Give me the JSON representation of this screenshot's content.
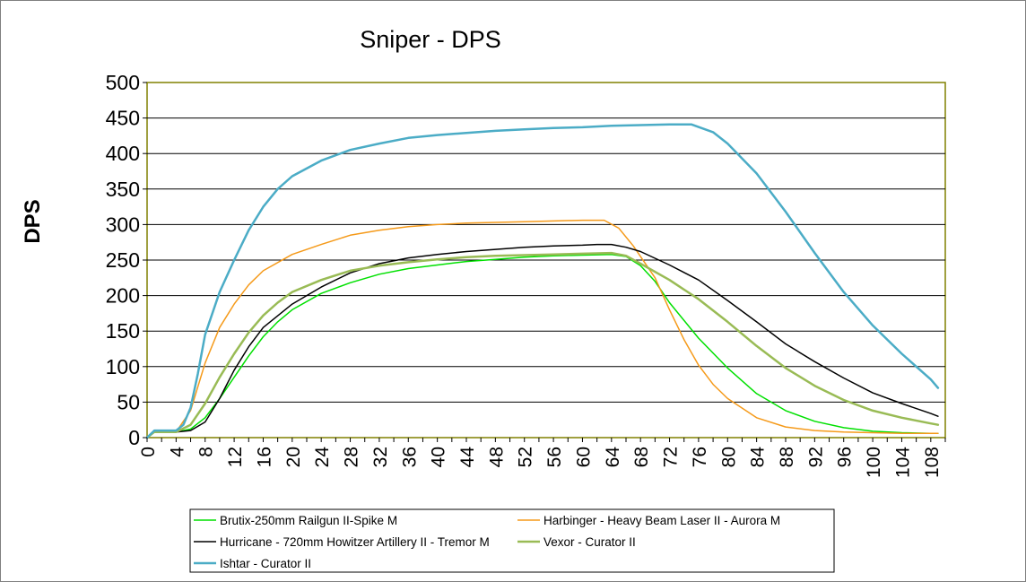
{
  "chart_data": {
    "type": "line",
    "title": "Sniper - DPS",
    "xlabel": "",
    "ylabel": "DPS",
    "xlim": [
      0,
      110
    ],
    "ylim": [
      0,
      500
    ],
    "grid": "horizontal",
    "legend_position": "bottom",
    "y_ticks": [
      0,
      50,
      100,
      150,
      200,
      250,
      300,
      350,
      400,
      450,
      500
    ],
    "x_ticks": [
      0,
      4,
      8,
      12,
      16,
      20,
      24,
      28,
      32,
      36,
      40,
      44,
      48,
      52,
      56,
      60,
      64,
      68,
      72,
      76,
      80,
      84,
      88,
      92,
      96,
      100,
      104,
      108
    ],
    "series": [
      {
        "name": "Brutix-250mm Railgun II-Spike M",
        "color": "#00e000",
        "width": 1.5,
        "points": [
          [
            0,
            0
          ],
          [
            1,
            8
          ],
          [
            4,
            8
          ],
          [
            6,
            12
          ],
          [
            8,
            28
          ],
          [
            10,
            55
          ],
          [
            12,
            85
          ],
          [
            14,
            115
          ],
          [
            16,
            142
          ],
          [
            18,
            163
          ],
          [
            20,
            180
          ],
          [
            24,
            203
          ],
          [
            28,
            218
          ],
          [
            32,
            230
          ],
          [
            36,
            238
          ],
          [
            40,
            243
          ],
          [
            44,
            248
          ],
          [
            48,
            251
          ],
          [
            52,
            254
          ],
          [
            56,
            256
          ],
          [
            60,
            257
          ],
          [
            64,
            258
          ],
          [
            66,
            255
          ],
          [
            68,
            242
          ],
          [
            70,
            220
          ],
          [
            72,
            190
          ],
          [
            76,
            140
          ],
          [
            80,
            98
          ],
          [
            84,
            62
          ],
          [
            88,
            38
          ],
          [
            92,
            23
          ],
          [
            96,
            14
          ],
          [
            100,
            9
          ],
          [
            104,
            7
          ],
          [
            108,
            6
          ],
          [
            109,
            6
          ]
        ]
      },
      {
        "name": "Harbinger - Heavy Beam Laser II - Aurora M",
        "color": "#f59a1a",
        "width": 1.5,
        "points": [
          [
            0,
            0
          ],
          [
            1,
            8
          ],
          [
            4,
            8
          ],
          [
            6,
            38
          ],
          [
            8,
            105
          ],
          [
            10,
            155
          ],
          [
            12,
            188
          ],
          [
            14,
            215
          ],
          [
            16,
            235
          ],
          [
            20,
            258
          ],
          [
            24,
            272
          ],
          [
            28,
            285
          ],
          [
            32,
            292
          ],
          [
            36,
            297
          ],
          [
            40,
            300
          ],
          [
            44,
            302
          ],
          [
            48,
            303
          ],
          [
            52,
            304
          ],
          [
            56,
            305
          ],
          [
            60,
            306
          ],
          [
            63,
            306
          ],
          [
            65,
            295
          ],
          [
            67,
            270
          ],
          [
            70,
            225
          ],
          [
            72,
            180
          ],
          [
            74,
            138
          ],
          [
            76,
            102
          ],
          [
            78,
            75
          ],
          [
            80,
            55
          ],
          [
            84,
            28
          ],
          [
            88,
            15
          ],
          [
            92,
            10
          ],
          [
            96,
            8
          ],
          [
            100,
            7
          ],
          [
            104,
            6
          ],
          [
            108,
            6
          ],
          [
            109,
            6
          ]
        ]
      },
      {
        "name": "Hurricane - 720mm Howitzer Artillery II - Tremor M",
        "color": "#000000",
        "width": 1.5,
        "points": [
          [
            0,
            0
          ],
          [
            1,
            8
          ],
          [
            4,
            8
          ],
          [
            6,
            10
          ],
          [
            8,
            22
          ],
          [
            10,
            55
          ],
          [
            12,
            95
          ],
          [
            14,
            128
          ],
          [
            16,
            155
          ],
          [
            20,
            188
          ],
          [
            24,
            212
          ],
          [
            28,
            232
          ],
          [
            32,
            245
          ],
          [
            36,
            253
          ],
          [
            40,
            258
          ],
          [
            44,
            262
          ],
          [
            48,
            265
          ],
          [
            52,
            268
          ],
          [
            56,
            270
          ],
          [
            60,
            271
          ],
          [
            62,
            272
          ],
          [
            64,
            272
          ],
          [
            66,
            268
          ],
          [
            68,
            262
          ],
          [
            72,
            243
          ],
          [
            76,
            222
          ],
          [
            80,
            193
          ],
          [
            84,
            163
          ],
          [
            88,
            132
          ],
          [
            92,
            107
          ],
          [
            96,
            84
          ],
          [
            100,
            63
          ],
          [
            104,
            48
          ],
          [
            108,
            34
          ],
          [
            109,
            30
          ]
        ]
      },
      {
        "name": "Vexor - Curator II",
        "color": "#99bb55",
        "width": 2.5,
        "points": [
          [
            0,
            0
          ],
          [
            1,
            8
          ],
          [
            4,
            8
          ],
          [
            6,
            18
          ],
          [
            8,
            48
          ],
          [
            10,
            85
          ],
          [
            12,
            118
          ],
          [
            14,
            148
          ],
          [
            16,
            172
          ],
          [
            18,
            190
          ],
          [
            20,
            205
          ],
          [
            24,
            222
          ],
          [
            28,
            235
          ],
          [
            32,
            242
          ],
          [
            36,
            247
          ],
          [
            40,
            251
          ],
          [
            44,
            254
          ],
          [
            48,
            256
          ],
          [
            52,
            257
          ],
          [
            56,
            258
          ],
          [
            60,
            259
          ],
          [
            64,
            260
          ],
          [
            66,
            256
          ],
          [
            68,
            245
          ],
          [
            72,
            222
          ],
          [
            76,
            195
          ],
          [
            80,
            163
          ],
          [
            84,
            129
          ],
          [
            88,
            98
          ],
          [
            92,
            73
          ],
          [
            96,
            53
          ],
          [
            100,
            38
          ],
          [
            104,
            28
          ],
          [
            108,
            20
          ],
          [
            109,
            18
          ]
        ]
      },
      {
        "name": "Ishtar - Curator II",
        "color": "#4bacc6",
        "width": 2.5,
        "points": [
          [
            0,
            0
          ],
          [
            1,
            10
          ],
          [
            4,
            10
          ],
          [
            5,
            18
          ],
          [
            6,
            42
          ],
          [
            7,
            90
          ],
          [
            8,
            145
          ],
          [
            10,
            205
          ],
          [
            12,
            250
          ],
          [
            14,
            292
          ],
          [
            16,
            325
          ],
          [
            18,
            350
          ],
          [
            20,
            368
          ],
          [
            24,
            390
          ],
          [
            28,
            405
          ],
          [
            32,
            414
          ],
          [
            36,
            422
          ],
          [
            40,
            426
          ],
          [
            44,
            429
          ],
          [
            48,
            432
          ],
          [
            52,
            434
          ],
          [
            56,
            436
          ],
          [
            60,
            437
          ],
          [
            64,
            439
          ],
          [
            68,
            440
          ],
          [
            72,
            441
          ],
          [
            75,
            441
          ],
          [
            78,
            430
          ],
          [
            80,
            414
          ],
          [
            84,
            372
          ],
          [
            88,
            318
          ],
          [
            92,
            260
          ],
          [
            96,
            205
          ],
          [
            100,
            158
          ],
          [
            104,
            118
          ],
          [
            108,
            82
          ],
          [
            109,
            70
          ]
        ]
      }
    ]
  }
}
